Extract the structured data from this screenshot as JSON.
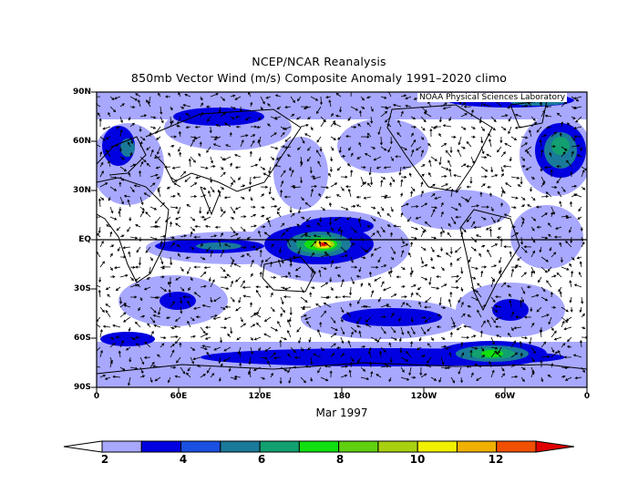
{
  "title_line1": "NCEP/NCAR Reanalysis",
  "title_line2": "850mb Vector Wind (m/s) Composite Anomaly 1991–2020 climo",
  "credit": "NOAA Physical Sciences Laboratory",
  "date_label": "Mar 1997",
  "lat_labels": [
    "90N",
    "60N",
    "30N",
    "EQ",
    "30S",
    "60S",
    "90S"
  ],
  "lon_labels": [
    "0",
    "60E",
    "120E",
    "180",
    "120W",
    "60W",
    "0"
  ],
  "colorbar": {
    "labels": [
      "2",
      "4",
      "6",
      "8",
      "10",
      "12"
    ],
    "colors": [
      "#ffffff",
      "#a8a8ff",
      "#0000e0",
      "#1a50e0",
      "#1a7a9a",
      "#12a070",
      "#10e010",
      "#60d010",
      "#a8d010",
      "#f0f000",
      "#f0b000",
      "#f05000",
      "#e00000"
    ]
  }
}
